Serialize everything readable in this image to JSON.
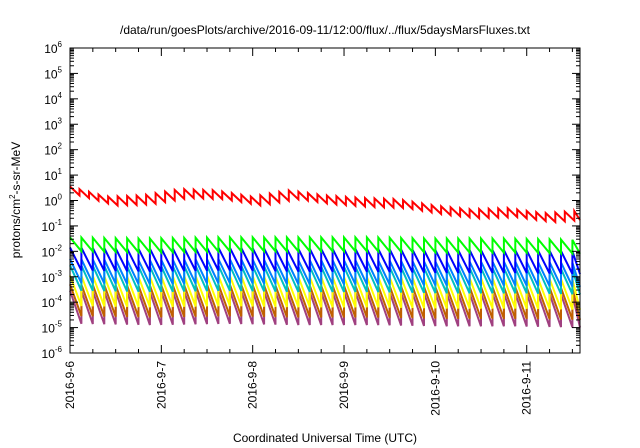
{
  "chart_data": {
    "type": "line",
    "title": "/data/run/goesPlots/archive/2016-09-11/12:00/flux/../flux/5daysMarsFluxes.txt",
    "xlabel": "Coordinated Universal Time (UTC)",
    "ylabel": "protons/cm²-s-sr-MeV",
    "ylabel_parts": {
      "prefix": "protons/cm",
      "sup": "2",
      "suffix": "-s-sr-MeV"
    },
    "yscale": "log",
    "ylim": [
      1e-06,
      1000000.0
    ],
    "xlim": [
      "2016-09-06 00:00",
      "2016-09-11 14:00"
    ],
    "xtick_labels": [
      "2016-9-6",
      "2016-9-7",
      "2016-9-8",
      "2016-9-9",
      "2016-9-10",
      "2016-9-11"
    ],
    "ytick_labels": [
      {
        "base": "10",
        "exp": "-6"
      },
      {
        "base": "10",
        "exp": "-5"
      },
      {
        "base": "10",
        "exp": "-4"
      },
      {
        "base": "10",
        "exp": "-3"
      },
      {
        "base": "10",
        "exp": "-2"
      },
      {
        "base": "10",
        "exp": "-1"
      },
      {
        "base": "10",
        "exp": "0"
      },
      {
        "base": "10",
        "exp": "1"
      },
      {
        "base": "10",
        "exp": "2"
      },
      {
        "base": "10",
        "exp": "3"
      },
      {
        "base": "10",
        "exp": "4"
      },
      {
        "base": "10",
        "exp": "5"
      },
      {
        "base": "10",
        "exp": "6"
      }
    ],
    "grid": false,
    "legend": "none",
    "series_style": "sawtooth: linear decay between periodic resets, ~3 hour period",
    "series": [
      {
        "color": "#ff0000",
        "period_hours": 2.5,
        "peaks_log10": [
          0.55,
          0.15,
          0.2,
          0.45,
          0.4,
          0.15,
          0.4,
          0.2,
          0.1,
          0.05,
          -0.2,
          -0.35,
          -0.3,
          -0.5,
          -0.4
        ],
        "drop": 0.35
      },
      {
        "color": "#00ff00",
        "period_hours": 3.0,
        "peaks_log10": [
          -1.45,
          -1.5,
          -1.45,
          -1.45,
          -1.45,
          -1.5,
          -1.5,
          -1.55
        ],
        "drop": 0.55
      },
      {
        "color": "#0000ff",
        "period_hours": 3.0,
        "peaks_log10": [
          -1.85,
          -1.9,
          -1.85,
          -1.9,
          -1.9,
          -1.95,
          -1.95,
          -2.0
        ],
        "drop": 0.9
      },
      {
        "color": "#0080ff",
        "period_hours": 3.0,
        "peaks_log10": [
          -2.3,
          -2.35,
          -2.3,
          -2.35,
          -2.35,
          -2.4,
          -2.4,
          -2.45
        ],
        "drop": 0.95
      },
      {
        "color": "#00c0c0",
        "period_hours": 3.0,
        "peaks_log10": [
          -2.55,
          -2.6,
          -2.55,
          -2.6,
          -2.6,
          -2.65,
          -2.65,
          -2.7
        ],
        "drop": 1.0
      },
      {
        "color": "#ffff00",
        "period_hours": 3.0,
        "peaks_log10": [
          -2.95,
          -3.0,
          -2.95,
          -3.0,
          -3.0,
          -3.05,
          -3.05,
          -3.1
        ],
        "drop": 1.2
      },
      {
        "color": "#c06000",
        "period_hours": 3.0,
        "peaks_log10": [
          -3.3,
          -3.35,
          -3.3,
          -3.35,
          -3.35,
          -3.4,
          -3.4,
          -3.45
        ],
        "drop": 1.25
      },
      {
        "color": "#a04080",
        "period_hours": 3.0,
        "peaks_log10": [
          -3.55,
          -3.6,
          -3.55,
          -3.6,
          -3.6,
          -3.65,
          -3.65,
          -3.7
        ],
        "drop": 1.3
      }
    ]
  }
}
